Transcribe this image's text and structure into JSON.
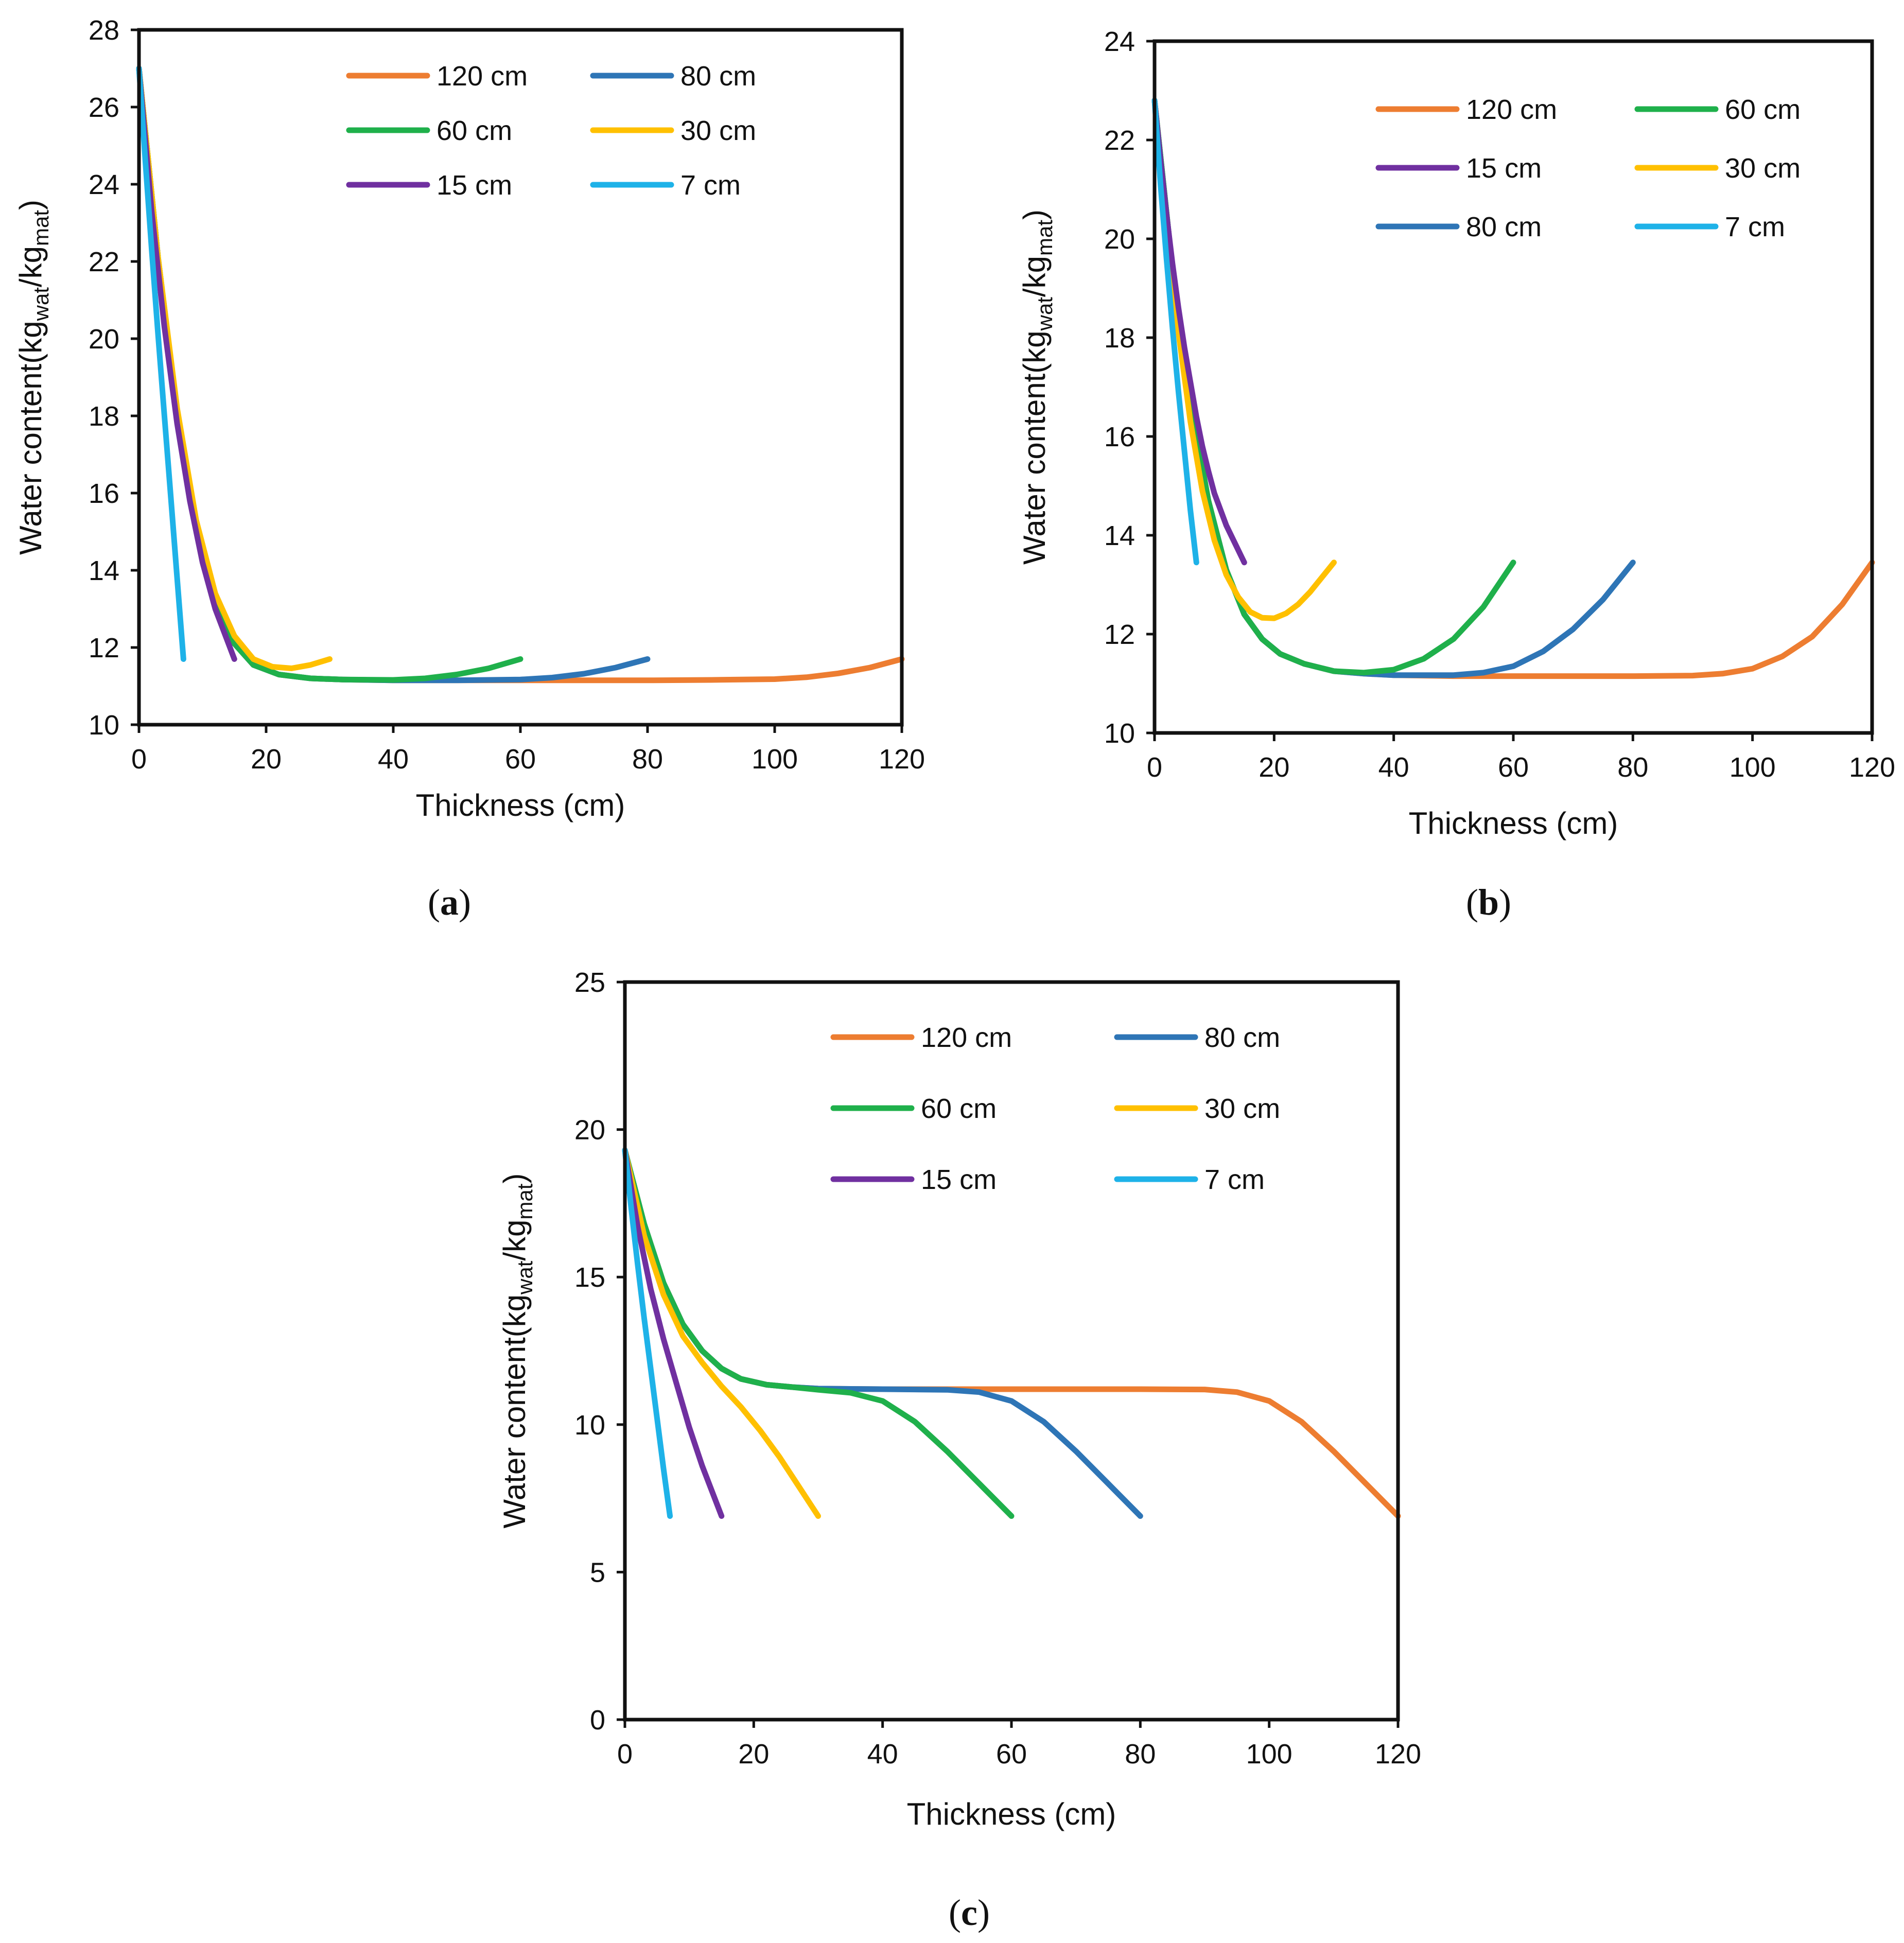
{
  "chart_data": [
    {
      "id": "a",
      "type": "line",
      "panel_label": "a",
      "xlabel": "Thickness (cm)",
      "ylabel": {
        "main": "Water content(kg",
        "sub1": "wat",
        "mid": "/kg",
        "sub2": "mat",
        "end": ")"
      },
      "xlim": [
        0,
        120
      ],
      "ylim": [
        10,
        28
      ],
      "xticks": [
        0,
        20,
        40,
        60,
        80,
        100,
        120
      ],
      "yticks": [
        10,
        12,
        14,
        16,
        18,
        20,
        22,
        24,
        26,
        28
      ],
      "legend_order": [
        0,
        1,
        2,
        3,
        4,
        5
      ],
      "series": [
        {
          "name": "120 cm",
          "color": "#ED7D31",
          "x": [
            0,
            3,
            6,
            9,
            12,
            15,
            18,
            22,
            27,
            32,
            40,
            50,
            60,
            70,
            80,
            90,
            100,
            105,
            110,
            115,
            120
          ],
          "y": [
            27.0,
            22.1,
            18.1,
            15.2,
            13.2,
            12.1,
            11.55,
            11.3,
            11.2,
            11.17,
            11.15,
            11.15,
            11.15,
            11.15,
            11.15,
            11.16,
            11.18,
            11.23,
            11.33,
            11.48,
            11.7
          ]
        },
        {
          "name": "80 cm",
          "color": "#2E75B6",
          "x": [
            0,
            3,
            6,
            9,
            12,
            15,
            18,
            22,
            27,
            32,
            40,
            50,
            60,
            65,
            70,
            75,
            80
          ],
          "y": [
            27.0,
            22.1,
            18.1,
            15.2,
            13.2,
            12.1,
            11.55,
            11.3,
            11.2,
            11.17,
            11.15,
            11.15,
            11.17,
            11.22,
            11.32,
            11.48,
            11.7
          ]
        },
        {
          "name": "60 cm",
          "color": "#1FB04B",
          "x": [
            0,
            3,
            6,
            9,
            12,
            15,
            18,
            22,
            27,
            32,
            40,
            45,
            50,
            55,
            60
          ],
          "y": [
            27.0,
            22.1,
            18.1,
            15.2,
            13.2,
            12.1,
            11.55,
            11.3,
            11.2,
            11.17,
            11.16,
            11.2,
            11.3,
            11.46,
            11.7
          ]
        },
        {
          "name": "30 cm",
          "color": "#FFC000",
          "x": [
            0,
            3,
            6,
            9,
            12,
            15,
            18,
            21,
            24,
            27,
            30
          ],
          "y": [
            27.0,
            22.1,
            18.2,
            15.3,
            13.4,
            12.3,
            11.7,
            11.5,
            11.46,
            11.55,
            11.7
          ]
        },
        {
          "name": "15 cm",
          "color": "#7030A0",
          "x": [
            0,
            2,
            4,
            6,
            8,
            10,
            12,
            15
          ],
          "y": [
            27.0,
            23.3,
            20.3,
            17.8,
            15.8,
            14.2,
            13.0,
            11.7
          ]
        },
        {
          "name": "7 cm",
          "color": "#1EB2E8",
          "x": [
            0,
            1,
            2,
            3,
            4,
            5,
            6,
            7
          ],
          "y": [
            27.0,
            24.6,
            22.3,
            20.1,
            18.0,
            15.9,
            13.8,
            11.7
          ]
        }
      ]
    },
    {
      "id": "b",
      "type": "line",
      "panel_label": "b",
      "xlabel": "Thickness (cm)",
      "ylabel": {
        "main": "Water content(kg",
        "sub1": "wat",
        "mid": "/kg",
        "sub2": "mat",
        "end": ")"
      },
      "xlim": [
        0,
        120
      ],
      "ylim": [
        10,
        24
      ],
      "xticks": [
        0,
        20,
        40,
        60,
        80,
        100,
        120
      ],
      "yticks": [
        10,
        12,
        14,
        16,
        18,
        20,
        22,
        24
      ],
      "legend_order": [
        0,
        2,
        4,
        3,
        1,
        5
      ],
      "series": [
        {
          "name": "120 cm",
          "color": "#ED7D31",
          "x": [
            0,
            3,
            6,
            9,
            12,
            15,
            18,
            21,
            25,
            30,
            35,
            40,
            50,
            60,
            70,
            80,
            90,
            95,
            100,
            105,
            110,
            115,
            120
          ],
          "y": [
            22.8,
            19.4,
            16.7,
            14.7,
            13.3,
            12.4,
            11.9,
            11.6,
            11.4,
            11.25,
            11.2,
            11.17,
            11.15,
            11.15,
            11.15,
            11.15,
            11.16,
            11.2,
            11.3,
            11.55,
            11.95,
            12.6,
            13.45
          ]
        },
        {
          "name": "80 cm",
          "color": "#2E75B6",
          "x": [
            0,
            3,
            6,
            9,
            12,
            15,
            18,
            21,
            25,
            30,
            35,
            40,
            50,
            55,
            60,
            65,
            70,
            75,
            80
          ],
          "y": [
            22.8,
            19.4,
            16.7,
            14.7,
            13.3,
            12.4,
            11.9,
            11.6,
            11.4,
            11.25,
            11.2,
            11.17,
            11.17,
            11.22,
            11.35,
            11.65,
            12.1,
            12.7,
            13.45
          ]
        },
        {
          "name": "60 cm",
          "color": "#1FB04B",
          "x": [
            0,
            3,
            6,
            9,
            12,
            15,
            18,
            21,
            25,
            30,
            35,
            40,
            45,
            50,
            55,
            60
          ],
          "y": [
            22.8,
            19.4,
            16.7,
            14.7,
            13.3,
            12.4,
            11.9,
            11.6,
            11.4,
            11.25,
            11.22,
            11.28,
            11.5,
            11.9,
            12.55,
            13.45
          ]
        },
        {
          "name": "30 cm",
          "color": "#FFC000",
          "x": [
            0,
            2,
            4,
            6,
            8,
            10,
            12,
            14,
            16,
            18,
            20,
            22,
            24,
            26,
            28,
            30
          ],
          "y": [
            22.8,
            20.3,
            18.1,
            16.3,
            14.9,
            13.9,
            13.2,
            12.75,
            12.45,
            12.33,
            12.32,
            12.42,
            12.6,
            12.85,
            13.15,
            13.45
          ]
        },
        {
          "name": "15 cm",
          "color": "#7030A0",
          "x": [
            0,
            1,
            2,
            3,
            4,
            5,
            6,
            7,
            8,
            9,
            10,
            12,
            15
          ],
          "y": [
            22.8,
            21.6,
            20.5,
            19.5,
            18.6,
            17.8,
            17.1,
            16.4,
            15.8,
            15.3,
            14.85,
            14.2,
            13.45
          ]
        },
        {
          "name": "7 cm",
          "color": "#1EB2E8",
          "x": [
            0,
            1,
            2,
            3,
            4,
            5,
            6,
            7
          ],
          "y": [
            22.8,
            21.1,
            19.6,
            18.2,
            16.9,
            15.7,
            14.5,
            13.45
          ]
        }
      ]
    },
    {
      "id": "c",
      "type": "line",
      "panel_label": "c",
      "xlabel": "Thickness (cm)",
      "ylabel": {
        "main": "Water content(kg",
        "sub1": "wat",
        "mid": "/kg",
        "sub2": "mat",
        "end": ")"
      },
      "xlim": [
        0,
        120
      ],
      "ylim": [
        0,
        25
      ],
      "xticks": [
        0,
        20,
        40,
        60,
        80,
        100,
        120
      ],
      "yticks": [
        0,
        5,
        10,
        15,
        20,
        25
      ],
      "legend_order": [
        0,
        1,
        2,
        3,
        4,
        5
      ],
      "series": [
        {
          "name": "120 cm",
          "color": "#ED7D31",
          "x": [
            0,
            3,
            6,
            9,
            12,
            15,
            18,
            22,
            26,
            30,
            40,
            50,
            60,
            70,
            80,
            90,
            95,
            100,
            105,
            110,
            115,
            120
          ],
          "y": [
            19.3,
            16.8,
            14.8,
            13.4,
            12.5,
            11.9,
            11.55,
            11.35,
            11.27,
            11.22,
            11.2,
            11.2,
            11.2,
            11.2,
            11.2,
            11.19,
            11.1,
            10.8,
            10.1,
            9.1,
            8.0,
            6.9
          ]
        },
        {
          "name": "80 cm",
          "color": "#2E75B6",
          "x": [
            0,
            3,
            6,
            9,
            12,
            15,
            18,
            22,
            26,
            30,
            40,
            50,
            55,
            60,
            65,
            70,
            75,
            80
          ],
          "y": [
            19.3,
            16.8,
            14.8,
            13.4,
            12.5,
            11.9,
            11.55,
            11.35,
            11.27,
            11.22,
            11.2,
            11.18,
            11.1,
            10.8,
            10.1,
            9.1,
            8.0,
            6.9
          ]
        },
        {
          "name": "60 cm",
          "color": "#1FB04B",
          "x": [
            0,
            3,
            6,
            9,
            12,
            15,
            18,
            22,
            26,
            30,
            35,
            40,
            45,
            50,
            55,
            60
          ],
          "y": [
            19.3,
            16.8,
            14.8,
            13.4,
            12.5,
            11.9,
            11.55,
            11.35,
            11.27,
            11.18,
            11.08,
            10.8,
            10.1,
            9.1,
            8.0,
            6.9
          ]
        },
        {
          "name": "30 cm",
          "color": "#FFC000",
          "x": [
            0,
            3,
            6,
            9,
            12,
            15,
            18,
            21,
            24,
            27,
            30
          ],
          "y": [
            19.3,
            16.4,
            14.4,
            13.0,
            12.1,
            11.3,
            10.6,
            9.8,
            8.9,
            7.9,
            6.9
          ]
        },
        {
          "name": "15 cm",
          "color": "#7030A0",
          "x": [
            0,
            2,
            4,
            6,
            8,
            10,
            12,
            15
          ],
          "y": [
            19.3,
            16.7,
            14.6,
            12.9,
            11.4,
            9.9,
            8.6,
            6.9
          ]
        },
        {
          "name": "7 cm",
          "color": "#1EB2E8",
          "x": [
            0,
            1,
            2,
            3,
            4,
            5,
            6,
            7
          ],
          "y": [
            19.3,
            17.3,
            15.4,
            13.6,
            11.9,
            10.2,
            8.5,
            6.9
          ]
        }
      ]
    }
  ]
}
